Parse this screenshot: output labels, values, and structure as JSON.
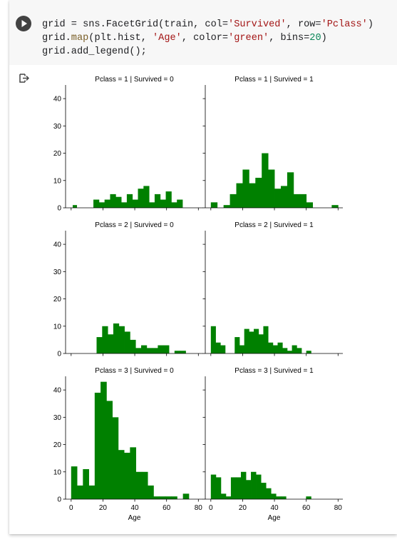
{
  "notebook": {
    "run_button_label": "Run cell",
    "code_lines": [
      [
        {
          "t": "grid = sns.FacetGrid(train, col="
        },
        {
          "t": "'Survived'",
          "c": "str"
        },
        {
          "t": ", row="
        },
        {
          "t": "'Pclass'",
          "c": "str"
        },
        {
          "t": ")"
        }
      ],
      [
        {
          "t": "grid."
        },
        {
          "t": "map",
          "c": "fn"
        },
        {
          "t": "(plt.hist, "
        },
        {
          "t": "'Age'",
          "c": "str"
        },
        {
          "t": ", color="
        },
        {
          "t": "'green'",
          "c": "str"
        },
        {
          "t": ", bins="
        },
        {
          "t": "20",
          "c": "num"
        },
        {
          "t": ")"
        }
      ],
      [
        {
          "t": "grid.add_legend();"
        }
      ]
    ],
    "output_icon": "output-redirect-icon"
  },
  "colors": {
    "bar": "#008000",
    "axis": "#000000"
  },
  "chart_data": [
    {
      "type": "bar",
      "title": "Pclass = 1 | Survived = 0",
      "xlim": [
        -3.5,
        83
      ],
      "ylim": [
        0,
        45
      ],
      "yticks": [
        0,
        10,
        20,
        30,
        40
      ],
      "xticks": [
        0,
        20,
        40,
        60,
        80
      ],
      "xlabel": "",
      "bins": [
        [
          1,
          3.5,
          1
        ],
        [
          14,
          17.5,
          3
        ],
        [
          17.5,
          21,
          2
        ],
        [
          21,
          24.5,
          3
        ],
        [
          24.5,
          28,
          5
        ],
        [
          28,
          31.5,
          4
        ],
        [
          31.5,
          35,
          2
        ],
        [
          35,
          38.5,
          5
        ],
        [
          38.5,
          42,
          3
        ],
        [
          42,
          45.5,
          7
        ],
        [
          45.5,
          49,
          8
        ],
        [
          49,
          52.5,
          2
        ],
        [
          52.5,
          56,
          5
        ],
        [
          56,
          59.5,
          3
        ],
        [
          59.5,
          63,
          6
        ],
        [
          63,
          66.5,
          2
        ],
        [
          66.5,
          70,
          3
        ]
      ]
    },
    {
      "type": "bar",
      "title": "Pclass = 1 | Survived = 1",
      "xlim": [
        -3.5,
        83
      ],
      "ylim": [
        0,
        45
      ],
      "yticks": [
        0,
        10,
        20,
        30,
        40
      ],
      "xticks": [
        0,
        20,
        40,
        60,
        80
      ],
      "xlabel": "",
      "bins": [
        [
          0,
          4,
          2
        ],
        [
          8,
          12,
          1
        ],
        [
          12,
          16,
          5
        ],
        [
          16,
          20,
          9
        ],
        [
          20,
          24,
          14
        ],
        [
          24,
          28,
          9
        ],
        [
          28,
          32,
          11
        ],
        [
          32,
          36,
          20
        ],
        [
          36,
          40,
          14
        ],
        [
          40,
          44,
          7
        ],
        [
          44,
          48,
          8
        ],
        [
          48,
          52,
          13
        ],
        [
          52,
          56,
          5
        ],
        [
          56,
          60,
          5
        ],
        [
          60,
          64,
          2
        ],
        [
          76,
          80,
          1
        ]
      ]
    },
    {
      "type": "bar",
      "title": "Pclass = 2 | Survived = 0",
      "xlim": [
        -3.5,
        83
      ],
      "ylim": [
        0,
        45
      ],
      "yticks": [
        0,
        10,
        20,
        30,
        40
      ],
      "xticks": [
        0,
        20,
        40,
        60,
        80
      ],
      "xlabel": "",
      "bins": [
        [
          16,
          19.5,
          6
        ],
        [
          19.5,
          23,
          10
        ],
        [
          23,
          26.5,
          7
        ],
        [
          26.5,
          30,
          11
        ],
        [
          30,
          33.5,
          10
        ],
        [
          33.5,
          37,
          8
        ],
        [
          37,
          40.5,
          5
        ],
        [
          40.5,
          44,
          2
        ],
        [
          44,
          47.5,
          3
        ],
        [
          47.5,
          51,
          2
        ],
        [
          51,
          54.5,
          2
        ],
        [
          54.5,
          58,
          3
        ],
        [
          58,
          61.5,
          3
        ],
        [
          65,
          68.5,
          1
        ],
        [
          68.5,
          72,
          1
        ]
      ]
    },
    {
      "type": "bar",
      "title": "Pclass = 2 | Survived = 1",
      "xlim": [
        -3.5,
        83
      ],
      "ylim": [
        0,
        45
      ],
      "yticks": [
        0,
        10,
        20,
        30,
        40
      ],
      "xticks": [
        0,
        20,
        40,
        60,
        80
      ],
      "xlabel": "",
      "bins": [
        [
          0,
          3,
          10
        ],
        [
          3,
          6,
          4
        ],
        [
          6,
          9,
          3
        ],
        [
          15,
          18,
          6
        ],
        [
          18,
          21,
          3
        ],
        [
          21,
          24,
          9
        ],
        [
          24,
          27,
          8
        ],
        [
          27,
          30,
          9
        ],
        [
          30,
          33,
          7
        ],
        [
          33,
          36,
          10
        ],
        [
          36,
          39,
          4
        ],
        [
          39,
          42,
          3
        ],
        [
          42,
          45,
          4
        ],
        [
          45,
          48,
          2
        ],
        [
          48,
          51,
          1
        ],
        [
          51,
          54,
          3
        ],
        [
          54,
          57,
          2
        ],
        [
          60,
          63,
          1
        ]
      ]
    },
    {
      "type": "bar",
      "title": "Pclass = 3 | Survived = 0",
      "xlim": [
        -3.5,
        83
      ],
      "ylim": [
        0,
        45
      ],
      "yticks": [
        0,
        10,
        20,
        30,
        40
      ],
      "xticks": [
        0,
        20,
        40,
        60,
        80
      ],
      "xlabel": "Age",
      "bins": [
        [
          0,
          3.7,
          12
        ],
        [
          3.7,
          7.4,
          5
        ],
        [
          7.4,
          11.1,
          11
        ],
        [
          11.1,
          14.8,
          5
        ],
        [
          14.8,
          18.5,
          39
        ],
        [
          18.5,
          22.2,
          43
        ],
        [
          22.2,
          25.9,
          36
        ],
        [
          25.9,
          29.6,
          30
        ],
        [
          29.6,
          33.3,
          18
        ],
        [
          33.3,
          37,
          17
        ],
        [
          37,
          40.7,
          19
        ],
        [
          40.7,
          44.4,
          10
        ],
        [
          44.4,
          48.1,
          10
        ],
        [
          48.1,
          51.8,
          5
        ],
        [
          51.8,
          55.5,
          1
        ],
        [
          55.5,
          59.2,
          1
        ],
        [
          59.2,
          62.9,
          1
        ],
        [
          62.9,
          66.6,
          1
        ],
        [
          70.3,
          74,
          2
        ]
      ]
    },
    {
      "type": "bar",
      "title": "Pclass = 3 | Survived = 1",
      "xlim": [
        -3.5,
        83
      ],
      "ylim": [
        0,
        45
      ],
      "yticks": [
        0,
        10,
        20,
        30,
        40
      ],
      "xticks": [
        0,
        20,
        40,
        60,
        80
      ],
      "xlabel": "Age",
      "bins": [
        [
          0,
          3.15,
          9
        ],
        [
          3.15,
          6.3,
          8
        ],
        [
          6.3,
          9.45,
          2
        ],
        [
          9.45,
          12.6,
          1
        ],
        [
          12.6,
          15.75,
          8
        ],
        [
          15.75,
          18.9,
          8
        ],
        [
          18.9,
          22.05,
          10
        ],
        [
          22.05,
          25.2,
          7
        ],
        [
          25.2,
          28.35,
          10
        ],
        [
          28.35,
          31.5,
          9
        ],
        [
          31.5,
          34.65,
          6
        ],
        [
          34.65,
          37.8,
          4
        ],
        [
          37.8,
          40.95,
          2
        ],
        [
          40.95,
          44.1,
          1
        ],
        [
          44.1,
          47.25,
          1
        ],
        [
          59.85,
          63,
          1
        ]
      ]
    }
  ]
}
